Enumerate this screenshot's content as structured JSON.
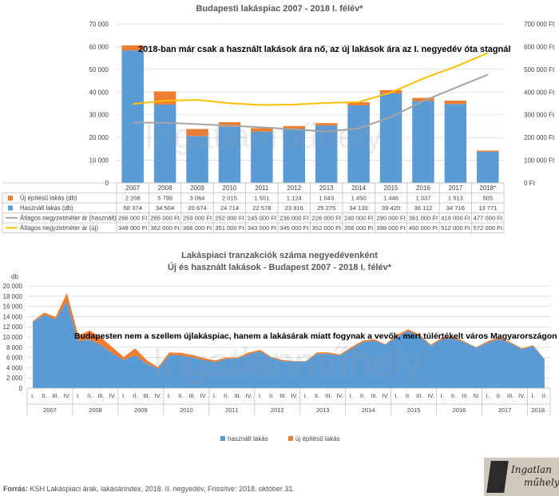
{
  "chart_data": [
    {
      "type": "bar+line",
      "title": "Budapesti lakáspiac 2007 - 2018 I. félév*",
      "annotation": "2018-ban már csak a használt lakások ára nő, az új lakások ára az I. negyedév óta stagnál",
      "categories": [
        "2007",
        "2008",
        "2009",
        "2010",
        "2011",
        "2012",
        "2013",
        "2014",
        "2015",
        "2016",
        "2017",
        "2018*"
      ],
      "left_axis": {
        "min": 0,
        "max": 70000,
        "step": 10000,
        "ticks": [
          "0",
          "10 000",
          "20 000",
          "30 000",
          "40 000",
          "50 000",
          "60 000",
          "70 000"
        ]
      },
      "right_axis": {
        "min": 0,
        "max": 700000,
        "step": 100000,
        "ticks": [
          "0 Ft",
          "100 000 Ft",
          "200 000 Ft",
          "300 000 Ft",
          "400 000 Ft",
          "500 000 Ft",
          "600 000 Ft",
          "700 000 Ft"
        ]
      },
      "series": [
        {
          "name": "Új építésű lakás (db)",
          "kind": "bar-stack",
          "axis": "left",
          "color": "#ed7d31",
          "values": [
            2208,
            5798,
            3064,
            2015,
            1551,
            1124,
            1043,
            1450,
            1446,
            1337,
            1513,
            505
          ],
          "labels": [
            "2 208",
            "5 798",
            "3 064",
            "2 015",
            "1 551",
            "1 124",
            "1 043",
            "1 450",
            "1 446",
            "1 337",
            "1 513",
            "505"
          ]
        },
        {
          "name": "Használt lakás (db)",
          "kind": "bar",
          "axis": "left",
          "color": "#5b9bd5",
          "values": [
            58374,
            34504,
            20674,
            24714,
            22578,
            23916,
            25275,
            34130,
            39420,
            36112,
            34716,
            13771
          ],
          "labels": [
            "58 374",
            "34 504",
            "20 674",
            "24 714",
            "22 578",
            "23 916",
            "25 275",
            "34 130",
            "39 420",
            "36 112",
            "34 716",
            "13 771"
          ]
        },
        {
          "name": "Átlagos negyzetméter ár (használt)",
          "kind": "line",
          "axis": "right",
          "color": "#a5a5a5",
          "values": [
            266000,
            265000,
            259000,
            252000,
            245000,
            236000,
            226000,
            240000,
            290000,
            361000,
            419000,
            477000
          ],
          "labels": [
            "266 000 Ft",
            "265 000 Ft",
            "259 000 Ft",
            "252 000 Ft",
            "245 000 Ft",
            "236 000 Ft",
            "226 000 Ft",
            "240 000 Ft",
            "290 000 Ft",
            "361 000 Ft",
            "419 000 Ft",
            "477 000 Ft"
          ]
        },
        {
          "name": "Átlagos negyzetméter ár (új)",
          "kind": "line",
          "axis": "right",
          "color": "#ffc000",
          "values": [
            348000,
            362000,
            366000,
            351000,
            343000,
            345000,
            352000,
            356000,
            398000,
            460000,
            512000,
            572000
          ],
          "labels": [
            "348 000 Ft",
            "362 000 Ft",
            "366 000 Ft",
            "351 000 Ft",
            "343 000 Ft",
            "345 000 Ft",
            "352 000 Ft",
            "356 000 Ft",
            "398 000 Ft",
            "460 000 Ft",
            "512 000 Ft",
            "572 000 Ft"
          ]
        }
      ]
    },
    {
      "type": "area",
      "title_line1": "Lakáspiaci tranzakciók száma negyedévenként",
      "title_line2": "Új és használt lakások - Budapest 2007 - 2018 I. félév*",
      "annotation": "Budapesten nem a szellem újlakáspiac, hanem a lakásárak miatt fogynak a vevők, mert túlértékelt város Magyarországon",
      "y_unit": "db",
      "y_axis": {
        "min": 0,
        "max": 20000,
        "step": 2000,
        "ticks": [
          "0",
          "2 000",
          "4 000",
          "6 000",
          "8 000",
          "10 000",
          "12 000",
          "14 000",
          "16 000",
          "18 000",
          "20 000"
        ]
      },
      "quarter_labels": [
        "I.",
        "II.",
        "III.",
        "IV."
      ],
      "years": [
        "2007",
        "2008",
        "2009",
        "2010",
        "2011",
        "2012",
        "2013",
        "2014",
        "2015",
        "2016",
        "2017",
        "2018."
      ],
      "series": [
        {
          "name": "használt lakás",
          "color": "#5b9bd5",
          "values": [
            12900,
            14300,
            13500,
            16900,
            9200,
            9500,
            8400,
            6800,
            5500,
            6400,
            4800,
            3800,
            6500,
            6400,
            6000,
            5500,
            5100,
            5700,
            5800,
            6600,
            7200,
            5900,
            5300,
            5200,
            5200,
            6700,
            6700,
            6400,
            7700,
            9000,
            9300,
            8500,
            10000,
            11200,
            10200,
            8300,
            9600,
            9700,
            8900,
            7900,
            8900,
            9600,
            8800,
            7600,
            8200,
            5600
          ]
        },
        {
          "name": "új építésű lakás",
          "color": "#ed7d31",
          "values": [
            200,
            500,
            400,
            1700,
            1100,
            1800,
            1500,
            1200,
            600,
            1400,
            700,
            300,
            500,
            500,
            500,
            400,
            300,
            300,
            200,
            400,
            300,
            200,
            200,
            100,
            100,
            300,
            300,
            200,
            300,
            300,
            300,
            100,
            400,
            300,
            300,
            200,
            300,
            400,
            200,
            100,
            300,
            300,
            200,
            200,
            200,
            100
          ]
        }
      ]
    }
  ],
  "watermark": "Ingatlanműhely",
  "logo": {
    "line1": "Ingatlan",
    "line2": "műhely"
  },
  "source_label": "Forrás:",
  "source_text": "KSH Lakáspiaci árak, lakásárindex, 2018. II. negyedév, Frissítve: 2018. október 31."
}
